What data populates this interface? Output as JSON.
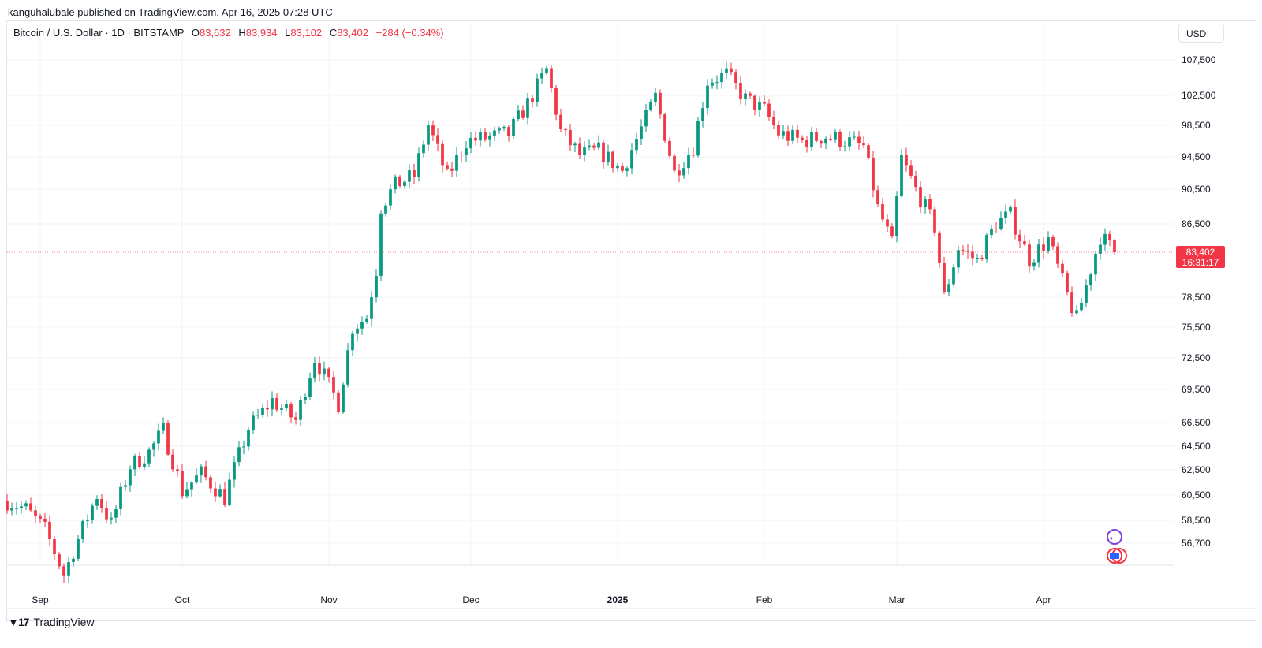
{
  "publisher_line": "kanguhalubale published on TradingView.com, Apr 16, 2025 07:28 UTC",
  "legend": {
    "symbol": "Bitcoin / U.S. Dollar · 1D · BITSTAMP",
    "o_label": "O",
    "o_value": "83,632",
    "h_label": "H",
    "h_value": "83,934",
    "l_label": "L",
    "l_value": "83,102",
    "c_label": "C",
    "c_value": "83,402",
    "change": "−284 (−0.34%)"
  },
  "currency": "USD",
  "price_tag": {
    "price": "83,402",
    "countdown": "16:31:17"
  },
  "brand": "TradingView",
  "colors": {
    "up": "#089981",
    "down": "#f23645",
    "grid": "#f0f3fa",
    "text": "#131722"
  },
  "chart_data": {
    "type": "candlestick",
    "x_start": "2024-08-25",
    "x_end": "2025-04-16",
    "current_price": 83402,
    "y_ticks": [
      107500,
      102500,
      98500,
      94500,
      90500,
      86500,
      78500,
      75500,
      72500,
      69500,
      66500,
      64500,
      62500,
      60500,
      58500,
      56700
    ],
    "y_tick_labels": [
      "107,500",
      "102,500",
      "98,500",
      "94,500",
      "90,500",
      "86,500",
      "78,500",
      "75,500",
      "72,500",
      "69,500",
      "66,500",
      "64,500",
      "62,500",
      "60,500",
      "58,500",
      "56,700"
    ],
    "x_ticks": [
      {
        "label": "Sep",
        "date": "2024-09-01",
        "bold": false
      },
      {
        "label": "Oct",
        "date": "2024-10-01",
        "bold": false
      },
      {
        "label": "Nov",
        "date": "2024-11-01",
        "bold": false
      },
      {
        "label": "Dec",
        "date": "2024-12-01",
        "bold": false
      },
      {
        "label": "2025",
        "date": "2025-01-01",
        "bold": true
      },
      {
        "label": "Feb",
        "date": "2025-02-01",
        "bold": false
      },
      {
        "label": "Mar",
        "date": "2025-03-01",
        "bold": false
      },
      {
        "label": "Apr",
        "date": "2025-04-01",
        "bold": false
      }
    ],
    "closes": [
      {
        "date": "2024-08-25",
        "close": 60000
      },
      {
        "date": "2024-08-29",
        "close": 59400
      },
      {
        "date": "2024-09-02",
        "close": 57800
      },
      {
        "date": "2024-09-06",
        "close": 54200
      },
      {
        "date": "2024-09-09",
        "close": 57000
      },
      {
        "date": "2024-09-13",
        "close": 60500
      },
      {
        "date": "2024-09-16",
        "close": 58200
      },
      {
        "date": "2024-09-20",
        "close": 62800
      },
      {
        "date": "2024-09-24",
        "close": 64000
      },
      {
        "date": "2024-09-27",
        "close": 65800
      },
      {
        "date": "2024-10-01",
        "close": 60800
      },
      {
        "date": "2024-10-05",
        "close": 62200
      },
      {
        "date": "2024-10-10",
        "close": 60300
      },
      {
        "date": "2024-10-15",
        "close": 66000
      },
      {
        "date": "2024-10-20",
        "close": 68500
      },
      {
        "date": "2024-10-25",
        "close": 66700
      },
      {
        "date": "2024-10-29",
        "close": 72500
      },
      {
        "date": "2024-11-03",
        "close": 68200
      },
      {
        "date": "2024-11-06",
        "close": 75500
      },
      {
        "date": "2024-11-09",
        "close": 76500
      },
      {
        "date": "2024-11-11",
        "close": 81500
      },
      {
        "date": "2024-11-12",
        "close": 88500
      },
      {
        "date": "2024-11-15",
        "close": 91000
      },
      {
        "date": "2024-11-19",
        "close": 92200
      },
      {
        "date": "2024-11-22",
        "close": 98500
      },
      {
        "date": "2024-11-26",
        "close": 92000
      },
      {
        "date": "2024-11-30",
        "close": 96500
      },
      {
        "date": "2024-12-05",
        "close": 97000
      },
      {
        "date": "2024-12-09",
        "close": 97400
      },
      {
        "date": "2024-12-13",
        "close": 101400
      },
      {
        "date": "2024-12-17",
        "close": 106100
      },
      {
        "date": "2024-12-20",
        "close": 97700
      },
      {
        "date": "2024-12-24",
        "close": 94700
      },
      {
        "date": "2024-12-28",
        "close": 95300
      },
      {
        "date": "2025-01-02",
        "close": 92800
      },
      {
        "date": "2025-01-06",
        "close": 98100
      },
      {
        "date": "2025-01-09",
        "close": 102300
      },
      {
        "date": "2025-01-13",
        "close": 92500
      },
      {
        "date": "2025-01-17",
        "close": 95800
      },
      {
        "date": "2025-01-20",
        "close": 104500
      },
      {
        "date": "2025-01-24",
        "close": 105500
      },
      {
        "date": "2025-01-28",
        "close": 102000
      },
      {
        "date": "2025-02-01",
        "close": 100500
      },
      {
        "date": "2025-02-04",
        "close": 97500
      },
      {
        "date": "2025-02-09",
        "close": 96500
      },
      {
        "date": "2025-02-14",
        "close": 97100
      },
      {
        "date": "2025-02-19",
        "close": 96400
      },
      {
        "date": "2025-02-22",
        "close": 95800
      },
      {
        "date": "2025-02-25",
        "close": 88300
      },
      {
        "date": "2025-02-28",
        "close": 84200
      },
      {
        "date": "2025-03-02",
        "close": 94300
      },
      {
        "date": "2025-03-05",
        "close": 90500
      },
      {
        "date": "2025-03-09",
        "close": 86200
      },
      {
        "date": "2025-03-11",
        "close": 78500
      },
      {
        "date": "2025-03-14",
        "close": 83900
      },
      {
        "date": "2025-03-18",
        "close": 82500
      },
      {
        "date": "2025-03-22",
        "close": 86700
      },
      {
        "date": "2025-03-25",
        "close": 87500
      },
      {
        "date": "2025-03-29",
        "close": 82600
      },
      {
        "date": "2025-04-02",
        "close": 84800
      },
      {
        "date": "2025-04-06",
        "close": 78700
      },
      {
        "date": "2025-04-08",
        "close": 76300
      },
      {
        "date": "2025-04-10",
        "close": 79700
      },
      {
        "date": "2025-04-13",
        "close": 85200
      },
      {
        "date": "2025-04-16",
        "close": 83402
      }
    ]
  }
}
